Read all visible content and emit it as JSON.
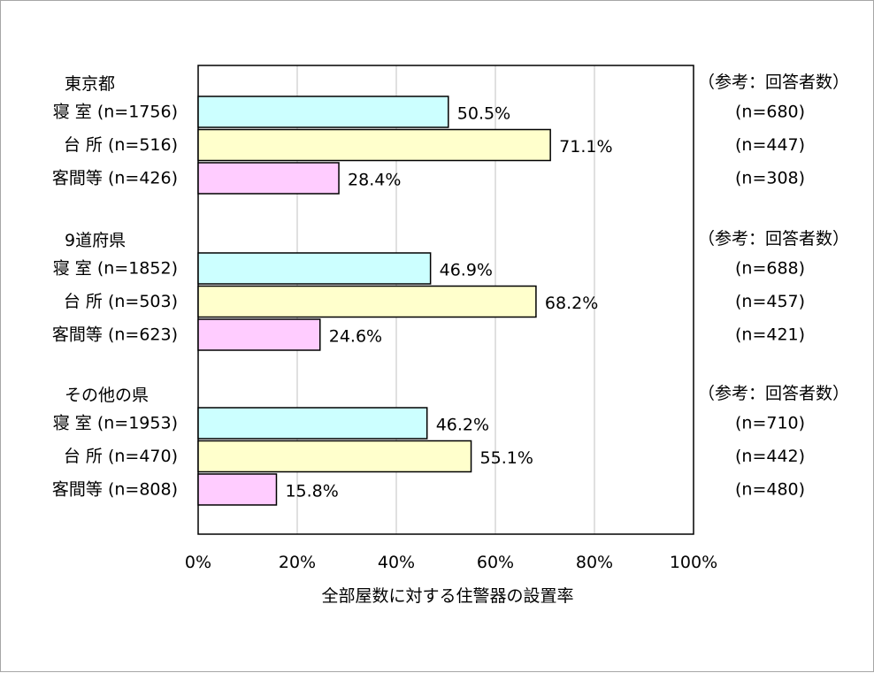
{
  "chart_data": {
    "type": "bar",
    "orientation": "horizontal",
    "xlabel": "全部屋数に対する住警器の設置率",
    "xlim": [
      0,
      100
    ],
    "x_ticks": [
      "0%",
      "20%",
      "40%",
      "60%",
      "80%",
      "100%"
    ],
    "grid": true,
    "legend": "none",
    "colors": {
      "寝室": "#ccffff",
      "台所": "#ffffcc",
      "客間等": "#ffccff",
      "bar_border": "#000000",
      "grid": "#c0c0c0"
    },
    "groups": [
      {
        "label": "東京都",
        "note_header": "（参考：回答者数）",
        "rows": [
          {
            "category": "寝室",
            "label": "寝  室 (n=1756)",
            "value": 50.5,
            "value_label": "50.5%",
            "note": "(n=680)"
          },
          {
            "category": "台所",
            "label": "台  所 (n=516)",
            "value": 71.1,
            "value_label": "71.1%",
            "note": "(n=447)"
          },
          {
            "category": "客間等",
            "label": "客間等 (n=426)",
            "value": 28.4,
            "value_label": "28.4%",
            "note": "(n=308)"
          }
        ]
      },
      {
        "label": "9道府県",
        "note_header": "（参考：回答者数）",
        "rows": [
          {
            "category": "寝室",
            "label": "寝  室 (n=1852)",
            "value": 46.9,
            "value_label": "46.9%",
            "note": "(n=688)"
          },
          {
            "category": "台所",
            "label": "台  所 (n=503)",
            "value": 68.2,
            "value_label": "68.2%",
            "note": "(n=457)"
          },
          {
            "category": "客間等",
            "label": "客間等 (n=623)",
            "value": 24.6,
            "value_label": "24.6%",
            "note": "(n=421)"
          }
        ]
      },
      {
        "label": "その他の県",
        "note_header": "（参考：回答者数）",
        "rows": [
          {
            "category": "寝室",
            "label": "寝  室 (n=1953)",
            "value": 46.2,
            "value_label": "46.2%",
            "note": "(n=710)"
          },
          {
            "category": "台所",
            "label": "台  所 (n=470)",
            "value": 55.1,
            "value_label": "55.1%",
            "note": "(n=442)"
          },
          {
            "category": "客間等",
            "label": "客間等 (n=808)",
            "value": 15.8,
            "value_label": "15.8%",
            "note": "(n=480)"
          }
        ]
      }
    ]
  }
}
